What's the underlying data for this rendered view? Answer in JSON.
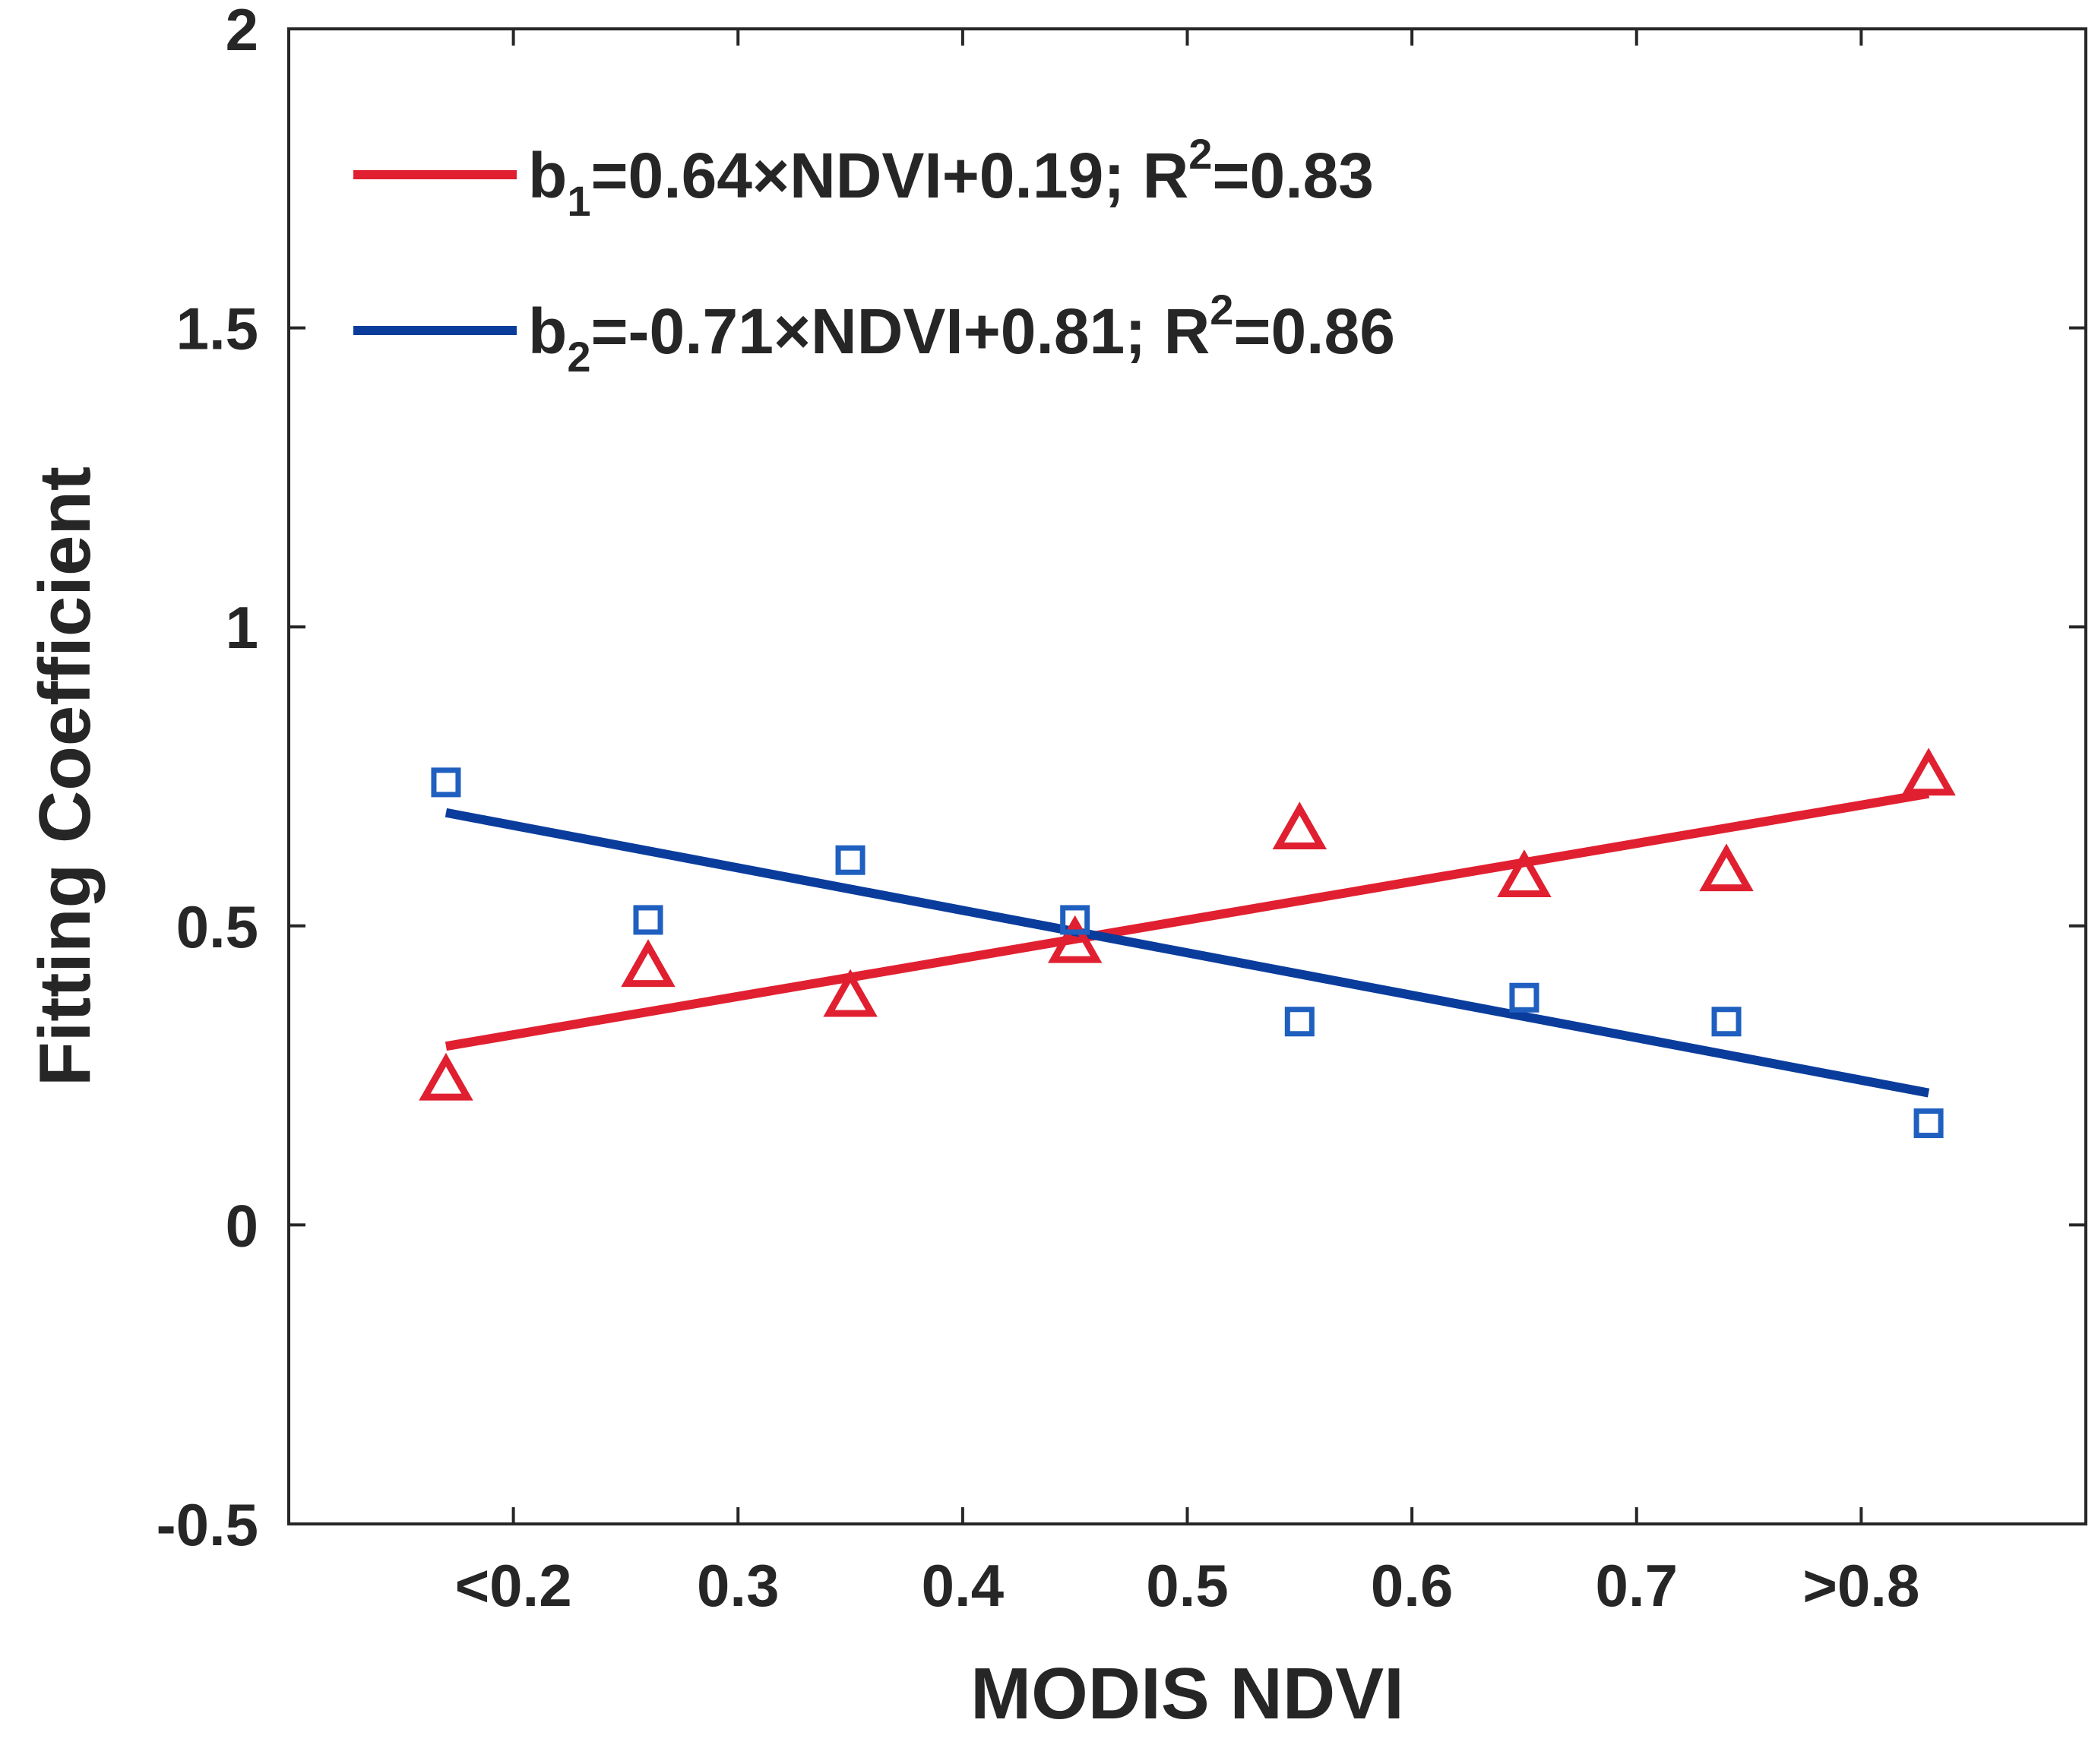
{
  "chart_data": {
    "type": "scatter",
    "title": "",
    "xlabel": "MODIS NDVI",
    "ylabel": "Fitting Coefficient",
    "xlim": [
      0.1,
      0.9
    ],
    "ylim": [
      -0.5,
      2
    ],
    "x_ticks": [
      0.2,
      0.3,
      0.4,
      0.5,
      0.6,
      0.7,
      0.8
    ],
    "x_tick_labels": [
      "<0.2",
      "0.3",
      "0.4",
      "0.5",
      "0.6",
      "0.7",
      ">0.8"
    ],
    "y_ticks": [
      -0.5,
      0,
      0.5,
      1,
      1.5,
      2
    ],
    "y_tick_labels": [
      "-0.5",
      "0",
      "0.5",
      "1",
      "1.5",
      "2"
    ],
    "grid": false,
    "legend_position": "top-left",
    "series": [
      {
        "name": "b1",
        "marker": "triangle",
        "color": "#e02030",
        "x": [
          0.17,
          0.26,
          0.35,
          0.45,
          0.55,
          0.65,
          0.74,
          0.83
        ],
        "y": [
          0.24,
          0.43,
          0.38,
          0.47,
          0.66,
          0.58,
          0.59,
          0.75
        ],
        "fit": {
          "slope": 0.64,
          "intercept": 0.19,
          "x_range": [
            0.17,
            0.83
          ]
        },
        "legend": {
          "lhs": "b",
          "sub": "1",
          "eq": "=0.64×NDVI+0.19; R",
          "sup": "2",
          "r2": "=0.83"
        }
      },
      {
        "name": "b2",
        "marker": "square",
        "color": "#1f5fbf",
        "line_color": "#0a3c9c",
        "x": [
          0.17,
          0.26,
          0.35,
          0.45,
          0.55,
          0.65,
          0.74,
          0.83
        ],
        "y": [
          0.74,
          0.51,
          0.61,
          0.51,
          0.34,
          0.38,
          0.34,
          0.17
        ],
        "fit": {
          "slope": -0.71,
          "intercept": 0.81,
          "x_range": [
            0.17,
            0.83
          ]
        },
        "legend": {
          "lhs": "b",
          "sub": "2",
          "eq": "=-0.71×NDVI+0.81; R",
          "sup": "2",
          "r2": "=0.86"
        }
      }
    ]
  }
}
